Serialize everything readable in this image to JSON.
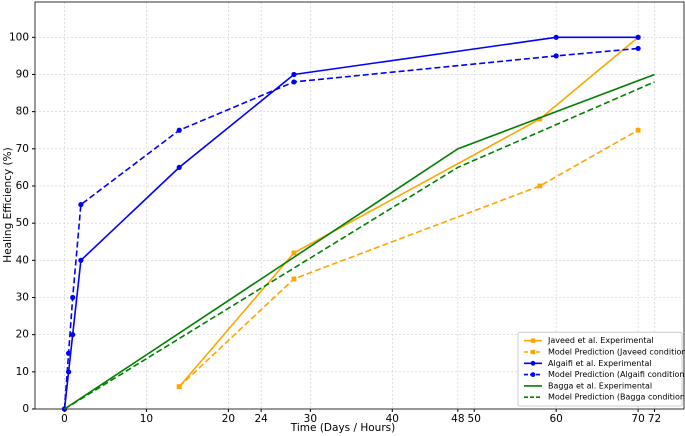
{
  "chart_data": {
    "type": "line",
    "x_label": "Time (Days / Hours)",
    "y_label": "Healing Efficiency (%)",
    "xlim": [
      -3.6,
      75.6
    ],
    "ylim": [
      0,
      109.5
    ],
    "xticks": [
      0,
      10,
      20,
      24,
      30,
      40,
      48,
      50,
      60,
      70,
      72
    ],
    "yticks": [
      0,
      10,
      20,
      30,
      40,
      50,
      60,
      70,
      80,
      90,
      100
    ],
    "grid": true,
    "legend": "lower right",
    "series": [
      {
        "name": "Javeed et al. Experimental",
        "color": "#ffa500",
        "dashed": false,
        "marker": "square",
        "x": [
          14,
          28,
          58,
          70
        ],
        "values": [
          6,
          42,
          78,
          100
        ]
      },
      {
        "name": "Model Prediction (Javeed conditions)",
        "color": "#ffa500",
        "dashed": true,
        "marker": "square",
        "x": [
          14,
          28,
          58,
          70
        ],
        "values": [
          6,
          35,
          60,
          75
        ]
      },
      {
        "name": "Algaifi et al. Experimental",
        "color": "#0000ff",
        "dashed": false,
        "marker": "circle",
        "x": [
          0,
          0.5,
          1,
          2,
          14,
          28,
          60,
          70
        ],
        "values": [
          0,
          10,
          20,
          40,
          65,
          90,
          100,
          100
        ]
      },
      {
        "name": "Model Prediction (Algaifi conditions)",
        "color": "#0000ff",
        "dashed": true,
        "marker": "circle",
        "x": [
          0,
          0.5,
          1,
          2,
          14,
          28,
          60,
          70
        ],
        "values": [
          0,
          15,
          30,
          55,
          75,
          88,
          95,
          97
        ]
      },
      {
        "name": "Bagga et al. Experimental",
        "color": "#008000",
        "dashed": false,
        "marker": "none",
        "x": [
          0,
          48,
          72
        ],
        "values": [
          0,
          70,
          90
        ]
      },
      {
        "name": "Model Prediction (Bagga conditions)",
        "color": "#008000",
        "dashed": true,
        "marker": "none",
        "x": [
          0,
          48,
          72
        ],
        "values": [
          0,
          65,
          88
        ]
      }
    ]
  }
}
